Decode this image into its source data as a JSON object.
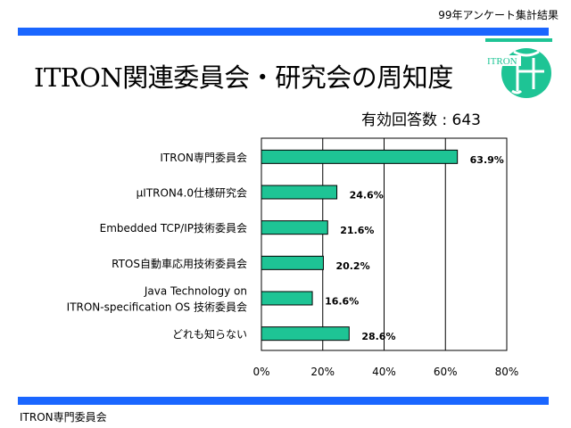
{
  "header": {
    "note": "99年アンケート集計結果"
  },
  "title": "ITRON関連委員会・研究会の周知度",
  "responses": "有効回答数 : 643",
  "footer": "ITRON専門委員会",
  "logo": {
    "text": "ITRON"
  },
  "colors": {
    "band": "#1a66ff",
    "bar": "#1ec495",
    "logo": "#1ec495"
  },
  "chart_data": {
    "type": "bar",
    "orientation": "horizontal",
    "categories": [
      [
        "ITRON専門委員会"
      ],
      [
        "μITRON4.0仕様研究会"
      ],
      [
        "Embedded TCP/IP技術委員会"
      ],
      [
        "RTOS自動車応用技術委員会"
      ],
      [
        "Java Technology on",
        "ITRON-specification OS 技術委員会"
      ],
      [
        "どれも知らない"
      ]
    ],
    "values": [
      63.9,
      24.6,
      21.6,
      20.2,
      16.6,
      28.6
    ],
    "value_labels": [
      "63.9%",
      "24.6%",
      "21.6%",
      "20.2%",
      "16.6%",
      "28.6%"
    ],
    "xlim": [
      0,
      80
    ],
    "xticks": [
      "0%",
      "20%",
      "40%",
      "60%",
      "80%"
    ],
    "grid": true
  }
}
